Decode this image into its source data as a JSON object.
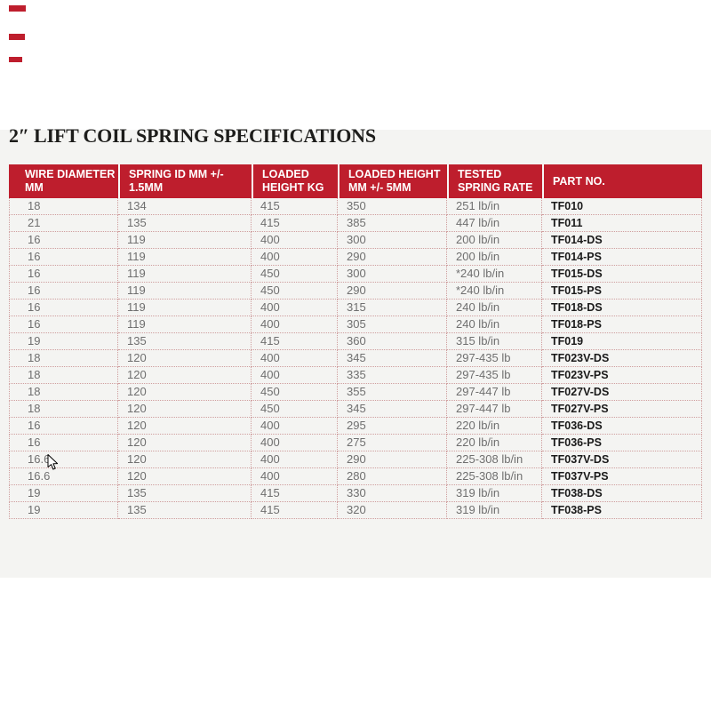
{
  "page": {
    "title": "2″ LIFT COIL SPRING SPECIFICATIONS"
  },
  "colors": {
    "accent_red": "#be1e2d",
    "band_bg": "#f4f4f2",
    "dotted_line": "#cf9e9e",
    "body_text": "#6f6f6f",
    "part_no_text": "#1a1a1a",
    "header_text": "#ffffff"
  },
  "decor": {
    "red_marks_count": 3
  },
  "cursor": {
    "icon": "mouse-pointer"
  },
  "table": {
    "columns": [
      "WIRE DIAMETER MM",
      "SPRING ID MM +/- 1.5MM",
      "LOADED HEIGHT KG",
      "LOADED HEIGHT MM +/- 5MM",
      "TESTED SPRING RATE",
      "PART NO."
    ],
    "rows": [
      [
        "18",
        "134",
        "415",
        "350",
        "251 lb/in",
        "TF010"
      ],
      [
        "21",
        "135",
        "415",
        "385",
        "447 lb/in",
        "TF011"
      ],
      [
        "16",
        "119",
        "400",
        "300",
        "200 lb/in",
        "TF014-DS"
      ],
      [
        "16",
        "119",
        "400",
        "290",
        "200 lb/in",
        "TF014-PS"
      ],
      [
        "16",
        "119",
        "450",
        "300",
        "*240 lb/in",
        "TF015-DS"
      ],
      [
        "16",
        "119",
        "450",
        "290",
        "*240 lb/in",
        "TF015-PS"
      ],
      [
        "16",
        "119",
        "400",
        "315",
        "240 lb/in",
        "TF018-DS"
      ],
      [
        "16",
        "119",
        "400",
        "305",
        "240 lb/in",
        "TF018-PS"
      ],
      [
        "19",
        "135",
        "415",
        "360",
        "315 lb/in",
        "TF019"
      ],
      [
        "18",
        "120",
        "400",
        "345",
        "297-435 lb",
        "TF023V-DS"
      ],
      [
        "18",
        "120",
        "400",
        "335",
        "297-435 lb",
        "TF023V-PS"
      ],
      [
        "18",
        "120",
        "450",
        "355",
        "297-447 lb",
        "TF027V-DS"
      ],
      [
        "18",
        "120",
        "450",
        "345",
        "297-447 lb",
        "TF027V-PS"
      ],
      [
        "16",
        "120",
        "400",
        "295",
        "220 lb/in",
        "TF036-DS"
      ],
      [
        "16",
        "120",
        "400",
        "275",
        "220 lb/in",
        "TF036-PS"
      ],
      [
        "16.6",
        "120",
        "400",
        "290",
        "225-308 lb/in",
        "TF037V-DS"
      ],
      [
        "16.6",
        "120",
        "400",
        "280",
        "225-308 lb/in",
        "TF037V-PS"
      ],
      [
        "19",
        "135",
        "415",
        "330",
        "319 lb/in",
        "TF038-DS"
      ],
      [
        "19",
        "135",
        "415",
        "320",
        "319 lb/in",
        "TF038-PS"
      ]
    ]
  }
}
